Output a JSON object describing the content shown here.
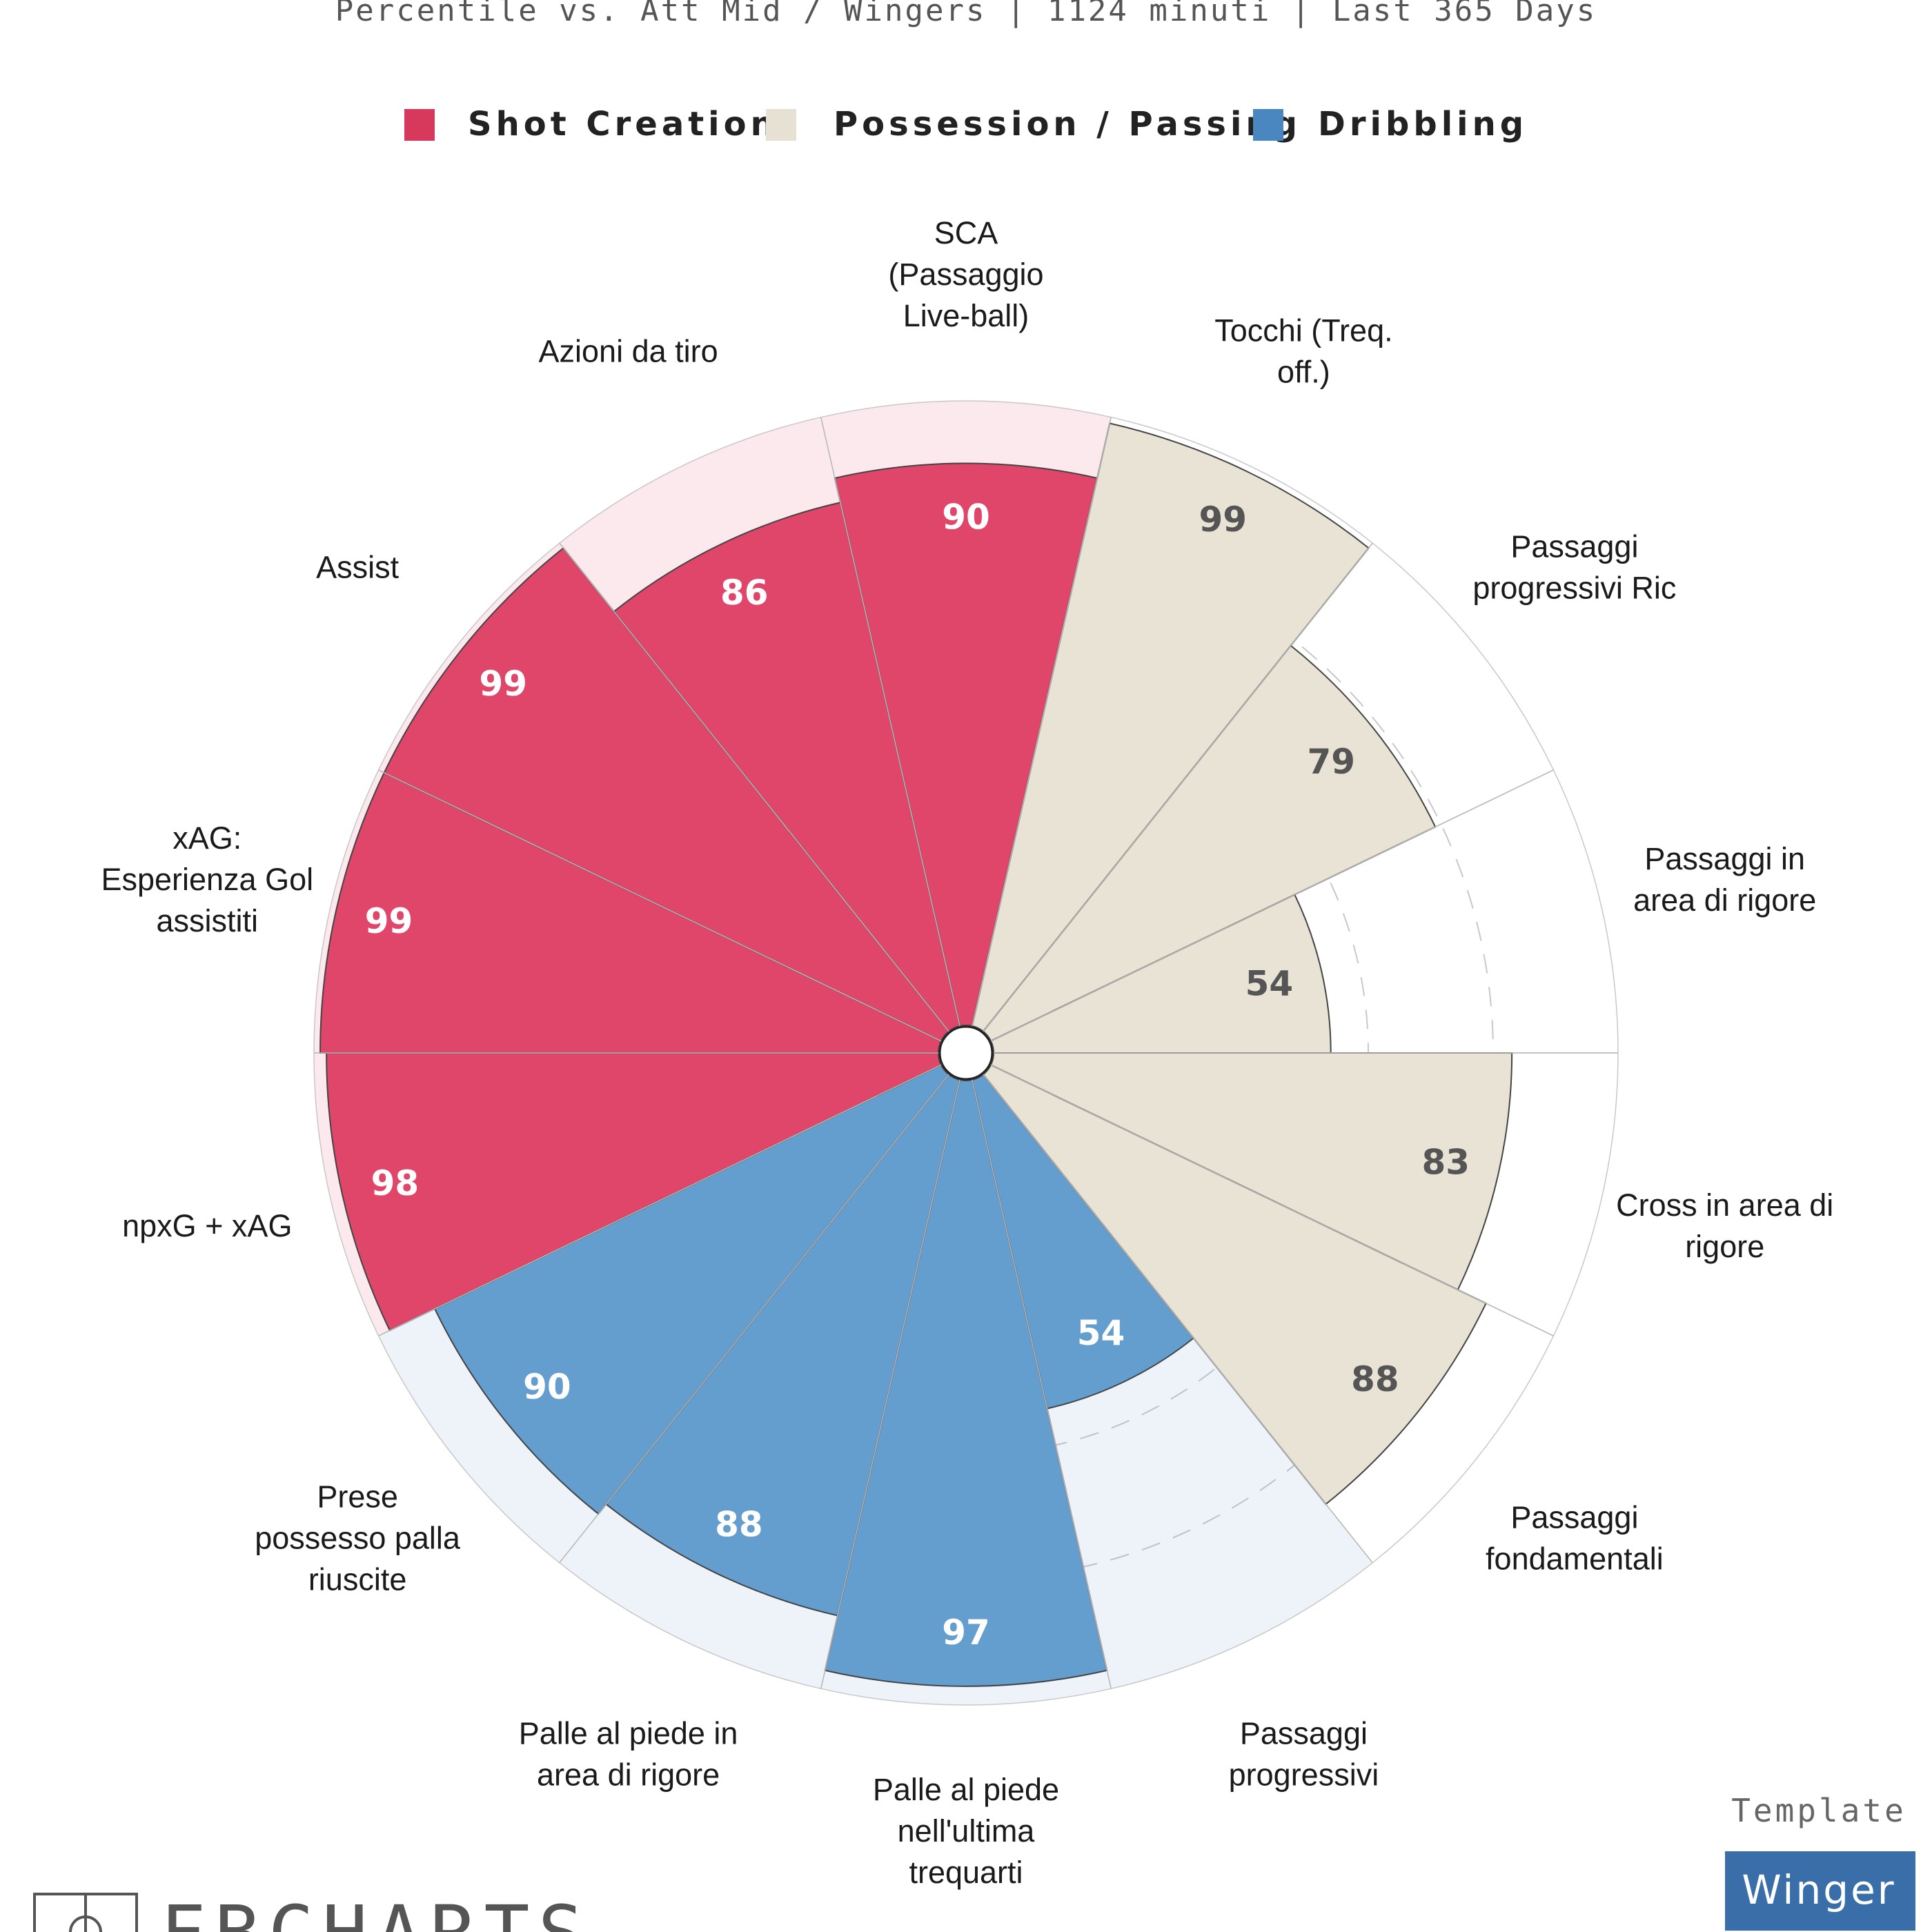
{
  "subtitle": "Percentile vs. Att Mid / Wingers | 1124 minuti | Last 365 Days",
  "legend": [
    {
      "label": "Shot Creation",
      "color": "#d6395b"
    },
    {
      "label": "Possession / Passing",
      "color": "#e6e1d2"
    },
    {
      "label": "Dribbling",
      "color": "#4a86c0"
    }
  ],
  "branding": {
    "text": "FBCHARTS",
    "icon": "pitch-logo-icon"
  },
  "template": {
    "label": "Template",
    "value": "Winger",
    "color": "#3a6ea8"
  },
  "chart_data": {
    "type": "polar-bar",
    "scale_max": 100,
    "grid": "dashed rings at 20, 40, 60, 80",
    "categories": [
      {
        "name": "Shot Creation",
        "fill": "#e0466a",
        "background": "#fbe9ee",
        "value_color": "#ffffff"
      },
      {
        "name": "Possession / Passing",
        "fill": "#e8e3d4",
        "background": "#ffffff",
        "value_color": "#555555"
      },
      {
        "name": "Dribbling",
        "fill": "#639ecf",
        "background": "#eef3f9",
        "value_color": "#ffffff"
      }
    ],
    "params": [
      {
        "label": [
          "SCA",
          "(Passaggio",
          "Live-ball)"
        ],
        "value": 90,
        "category": 0
      },
      {
        "label": [
          "Tocchi (Treq.",
          "off.)"
        ],
        "value": 99,
        "category": 1
      },
      {
        "label": [
          "Passaggi",
          "progressivi Ric"
        ],
        "value": 79,
        "category": 1
      },
      {
        "label": [
          "Passaggi in",
          "area di rigore"
        ],
        "value": 54,
        "category": 1
      },
      {
        "label": [
          "Cross in area di",
          "rigore"
        ],
        "value": 83,
        "category": 1
      },
      {
        "label": [
          "Passaggi",
          "fondamentali"
        ],
        "value": 88,
        "category": 1
      },
      {
        "label": [
          "Passaggi",
          "progressivi"
        ],
        "value": 54,
        "category": 2
      },
      {
        "label": [
          "Palle al piede",
          "nell'ultima",
          "trequarti"
        ],
        "value": 97,
        "category": 2
      },
      {
        "label": [
          "Palle al piede in",
          "area di rigore"
        ],
        "value": 88,
        "category": 2
      },
      {
        "label": [
          "Prese",
          "possesso palla",
          "riuscite"
        ],
        "value": 90,
        "category": 2
      },
      {
        "label": [
          "npxG + xAG"
        ],
        "value": 98,
        "category": 0
      },
      {
        "label": [
          "xAG:",
          "Esperienza Gol",
          "assistiti"
        ],
        "value": 99,
        "category": 0
      },
      {
        "label": [
          "Assist"
        ],
        "value": 99,
        "category": 0
      },
      {
        "label": [
          "Azioni da tiro"
        ],
        "value": 86,
        "category": 0
      }
    ]
  }
}
